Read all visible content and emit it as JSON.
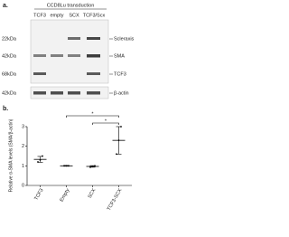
{
  "panel_a": {
    "label": "a.",
    "title": "CCD8Lu transduction",
    "lanes": [
      "TCF3",
      "empty",
      "SCX",
      "TCF3/Scx"
    ],
    "rows": [
      {
        "kda": "22kDa",
        "name": "Scleraxis"
      },
      {
        "kda": "42kDa",
        "name": "SMA"
      },
      {
        "kda": "68kDa",
        "name": "TCF3"
      },
      {
        "kda": "42kDa",
        "name": "β-actin"
      }
    ]
  },
  "panel_b": {
    "label": "b."
  },
  "chart_data": {
    "type": "scatter",
    "ylabel": "Relative α-SMA levels (SMA/β-actin)",
    "categories": [
      "TCF3",
      "Empty",
      "SCX",
      "TCF3-SCX"
    ],
    "values": [
      1.33,
      1,
      0.97,
      2.3
    ],
    "errors": [
      0.15,
      0.02,
      0.04,
      0.7
    ],
    "points": [
      [
        1.2,
        1.3,
        1.5
      ],
      [
        1,
        1,
        1
      ],
      [
        0.93,
        0.97,
        1
      ],
      [
        1.6,
        2.3,
        3
      ]
    ],
    "color": "#000000",
    "ylim": [
      0,
      3
    ],
    "yticks": [
      0,
      1,
      2,
      3
    ],
    "significance": [
      {
        "from": 1,
        "to": 3,
        "label": "*"
      },
      {
        "from": 2,
        "to": 3,
        "label": "*"
      }
    ]
  }
}
